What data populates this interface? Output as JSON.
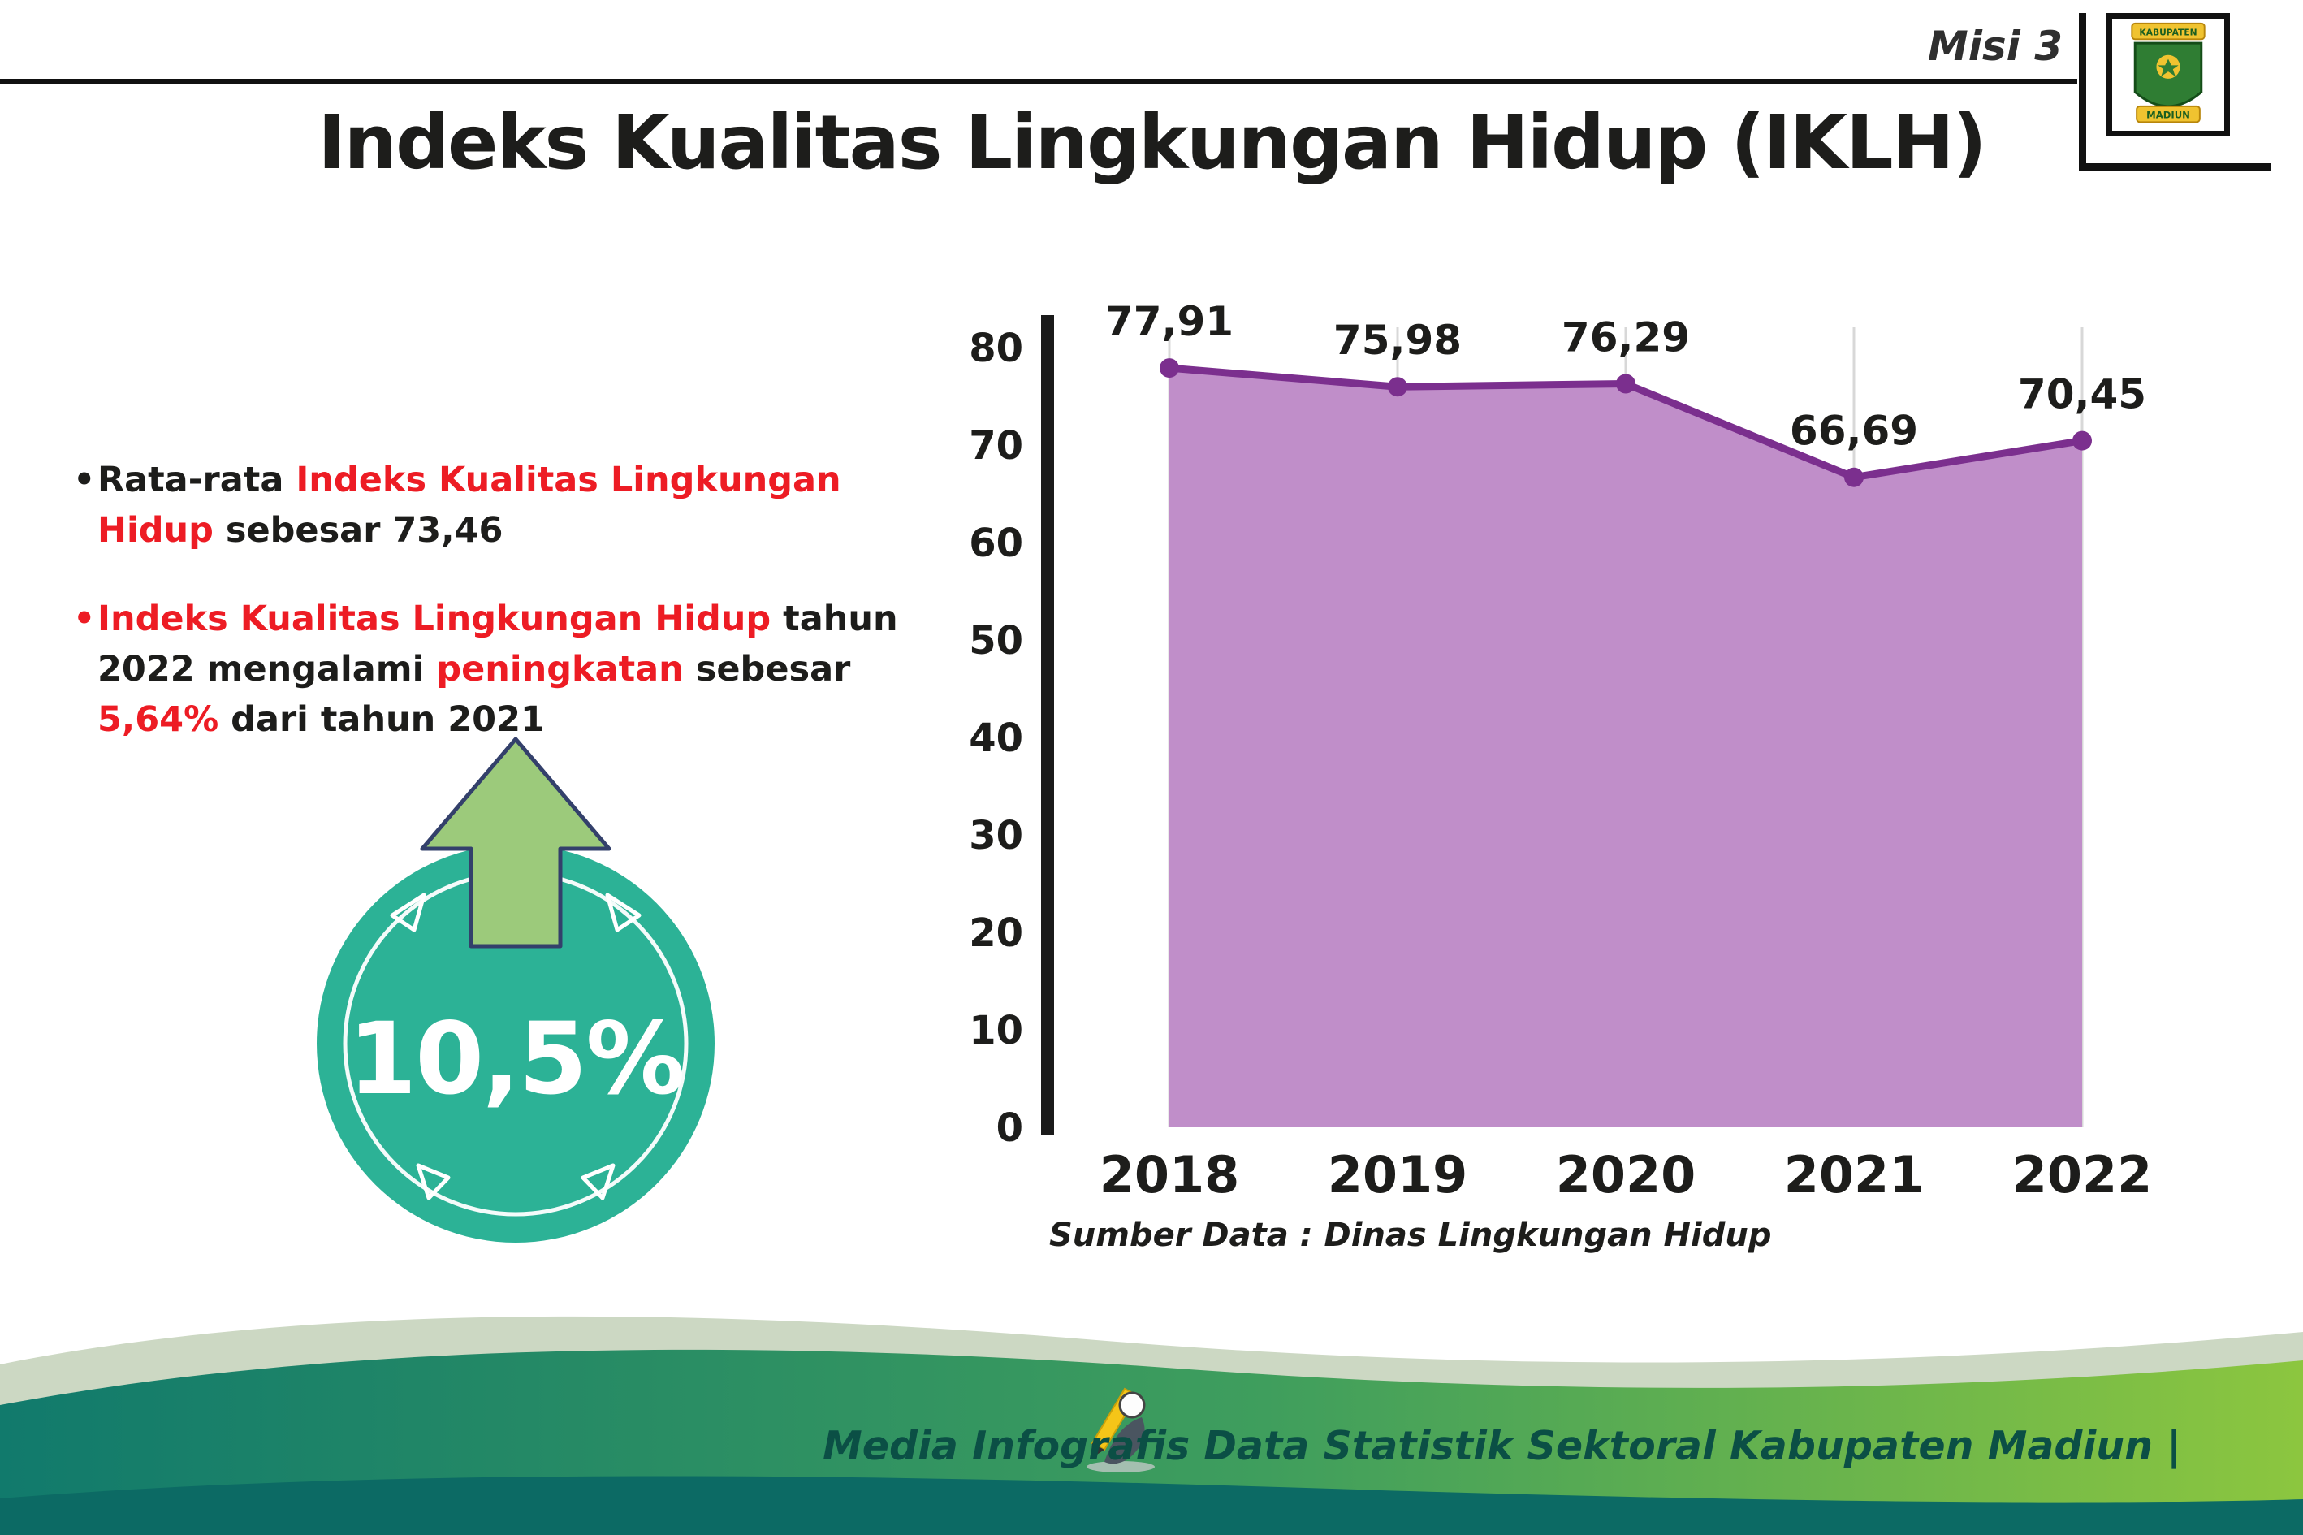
{
  "header": {
    "misi_label": "Misi 3",
    "logo": {
      "top_text": "KABUPATEN",
      "bottom_text": "MADIUN"
    }
  },
  "title": "Indeks Kualitas Lingkungan Hidup (IKLH)",
  "bullets": [
    {
      "marker": "•",
      "segments": [
        {
          "text": "Rata-rata "
        },
        {
          "text": "Indeks Kualitas Lingkungan Hidup"
        },
        {
          "text": " sebesar 73,46"
        }
      ]
    },
    {
      "marker": "•",
      "segments": [
        {
          "text": "Indeks Kualitas Lingkungan Hidup"
        },
        {
          "text": " tahun 2022 mengalami "
        },
        {
          "text": "peningkatan"
        },
        {
          "text": " sebesar "
        },
        {
          "text": "5,64%"
        },
        {
          "text": " dari tahun 2021"
        }
      ]
    }
  ],
  "badge": {
    "value": "10,5%"
  },
  "chart_data": {
    "type": "area",
    "categories": [
      "2018",
      "2019",
      "2020",
      "2021",
      "2022"
    ],
    "values": [
      77.91,
      75.98,
      76.29,
      66.69,
      70.45
    ],
    "value_labels": [
      "77,91",
      "75,98",
      "76,29",
      "66,69",
      "70,45"
    ],
    "title": "",
    "xlabel": "",
    "ylabel": "",
    "ylim": [
      0,
      80
    ],
    "yticks": [
      0,
      10,
      20,
      30,
      40,
      50,
      60,
      70,
      80
    ],
    "grid": "vertical",
    "legend": "none",
    "line_color": "#7b2f8e",
    "marker_color": "#7b2f8e",
    "fill_color": "#c08ec9",
    "source": "Sumber Data : Dinas Lingkungan Hidup"
  },
  "footer": {
    "credit": "Media Infografis Data Statistik Sektoral Kabupaten Madiun |"
  },
  "colors": {
    "accent_red": "#ed1c24",
    "text_dark": "#1d1d1b",
    "badge_teal": "#2cb296",
    "arrow_green": "#9cca7b",
    "footer_teal_dark": "#0c6a64",
    "footer_gradient_start": "#117a6c",
    "footer_gradient_end": "#8cc63f"
  }
}
